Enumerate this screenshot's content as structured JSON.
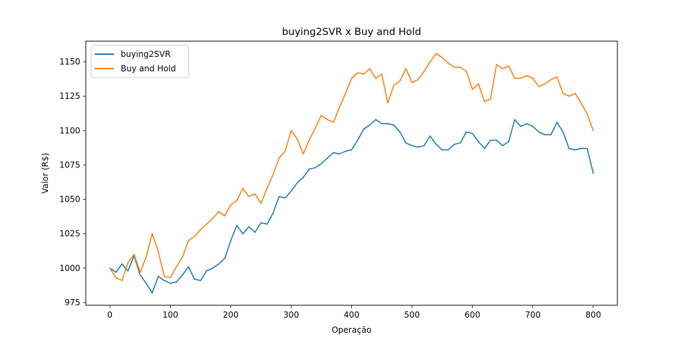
{
  "chart_data": {
    "type": "line",
    "title": "buying2SVR x Buy and Hold",
    "xlabel": "Operação",
    "ylabel": "Valor (R$)",
    "xlim": [
      -40,
      840
    ],
    "ylim": [
      973,
      1165
    ],
    "xticks": [
      0,
      100,
      200,
      300,
      400,
      500,
      600,
      700,
      800
    ],
    "yticks": [
      975,
      1000,
      1025,
      1050,
      1075,
      1100,
      1125,
      1150
    ],
    "grid": false,
    "legend_position": "upper-left",
    "series": [
      {
        "name": "buying2SVR",
        "color": "#1f77b4",
        "x": [
          0,
          10,
          20,
          30,
          40,
          50,
          60,
          70,
          80,
          90,
          100,
          110,
          120,
          130,
          140,
          150,
          160,
          170,
          180,
          190,
          200,
          210,
          220,
          230,
          240,
          250,
          260,
          270,
          280,
          290,
          300,
          310,
          320,
          330,
          340,
          350,
          360,
          370,
          380,
          390,
          400,
          410,
          420,
          430,
          440,
          450,
          460,
          470,
          480,
          490,
          500,
          510,
          520,
          530,
          540,
          550,
          560,
          570,
          580,
          590,
          600,
          610,
          620,
          630,
          640,
          650,
          660,
          670,
          680,
          690,
          700,
          710,
          720,
          730,
          740,
          750,
          760,
          770,
          780,
          790,
          800
        ],
        "values": [
          1000,
          997,
          1003,
          998,
          1009,
          995,
          989,
          982,
          994,
          991,
          989,
          990,
          995,
          1001,
          992,
          991,
          998,
          1000,
          1003,
          1007,
          1020,
          1031,
          1025,
          1030,
          1026,
          1033,
          1032,
          1040,
          1052,
          1051,
          1056,
          1062,
          1066,
          1072,
          1073,
          1076,
          1080,
          1084,
          1083,
          1085,
          1086,
          1093,
          1101,
          1104,
          1108,
          1105,
          1105,
          1104,
          1099,
          1091,
          1089,
          1088,
          1089,
          1096,
          1090,
          1086,
          1086,
          1090,
          1091,
          1099,
          1098,
          1092,
          1087,
          1093,
          1093,
          1089,
          1092,
          1108,
          1103,
          1105,
          1103,
          1099,
          1097,
          1097,
          1106,
          1099,
          1087,
          1086,
          1087,
          1087,
          1069
        ]
      },
      {
        "name": "Buy and Hold",
        "color": "#ff7f0e",
        "x": [
          0,
          10,
          20,
          30,
          40,
          50,
          60,
          70,
          80,
          90,
          100,
          110,
          120,
          130,
          140,
          150,
          160,
          170,
          180,
          190,
          200,
          210,
          220,
          230,
          240,
          250,
          260,
          270,
          280,
          290,
          300,
          310,
          320,
          330,
          340,
          350,
          360,
          370,
          380,
          390,
          400,
          410,
          420,
          430,
          440,
          450,
          460,
          470,
          480,
          490,
          500,
          510,
          520,
          530,
          540,
          550,
          560,
          570,
          580,
          590,
          600,
          610,
          620,
          630,
          640,
          650,
          660,
          670,
          680,
          690,
          700,
          710,
          720,
          730,
          740,
          750,
          760,
          770,
          780,
          790,
          800
        ],
        "values": [
          1000,
          993,
          991,
          1004,
          1010,
          997,
          1008,
          1025,
          1012,
          994,
          993,
          1001,
          1008,
          1020,
          1023,
          1028,
          1032,
          1036,
          1041,
          1038,
          1046,
          1049,
          1058,
          1052,
          1054,
          1047,
          1058,
          1068,
          1080,
          1085,
          1100,
          1094,
          1083,
          1093,
          1102,
          1111,
          1108,
          1106,
          1117,
          1127,
          1138,
          1142,
          1141,
          1145,
          1138,
          1141,
          1120,
          1133,
          1136,
          1145,
          1135,
          1137,
          1143,
          1150,
          1156,
          1153,
          1149,
          1146,
          1146,
          1143,
          1130,
          1134,
          1121,
          1123,
          1148,
          1145,
          1147,
          1138,
          1138,
          1140,
          1138,
          1132,
          1134,
          1137,
          1139,
          1127,
          1125,
          1127,
          1120,
          1112,
          1100
        ]
      }
    ]
  }
}
